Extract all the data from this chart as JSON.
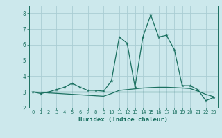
{
  "xlabel": "Humidex (Indice chaleur)",
  "x": [
    0,
    1,
    2,
    3,
    4,
    5,
    6,
    7,
    8,
    9,
    10,
    11,
    12,
    13,
    14,
    15,
    16,
    17,
    18,
    19,
    20,
    21,
    22,
    23
  ],
  "line1": [
    3.0,
    2.9,
    3.0,
    3.15,
    3.3,
    3.55,
    3.3,
    3.1,
    3.1,
    3.05,
    3.7,
    6.5,
    6.1,
    3.3,
    6.5,
    7.9,
    6.5,
    6.6,
    5.7,
    3.4,
    3.4,
    3.15,
    2.45,
    2.65
  ],
  "line2": [
    3.0,
    3.0,
    3.0,
    3.0,
    3.0,
    3.0,
    3.0,
    3.0,
    3.0,
    3.0,
    3.0,
    3.0,
    3.0,
    3.0,
    3.0,
    3.0,
    3.0,
    3.0,
    3.0,
    3.0,
    3.0,
    3.0,
    3.0,
    3.0
  ],
  "line3": [
    3.0,
    2.97,
    2.94,
    2.91,
    2.88,
    2.85,
    2.82,
    2.79,
    2.76,
    2.73,
    2.9,
    3.1,
    3.15,
    3.2,
    3.25,
    3.28,
    3.3,
    3.3,
    3.28,
    3.25,
    3.22,
    3.05,
    2.85,
    2.7
  ],
  "line_color": "#1a7060",
  "bg_color": "#cce8ec",
  "grid_color": "#aacdd4",
  "ylim": [
    2.0,
    8.5
  ],
  "xlim": [
    -0.5,
    23.5
  ],
  "yticks": [
    2,
    3,
    4,
    5,
    6,
    7,
    8
  ],
  "xticks": [
    0,
    1,
    2,
    3,
    4,
    5,
    6,
    7,
    8,
    9,
    10,
    11,
    12,
    13,
    14,
    15,
    16,
    17,
    18,
    19,
    20,
    21,
    22,
    23
  ]
}
